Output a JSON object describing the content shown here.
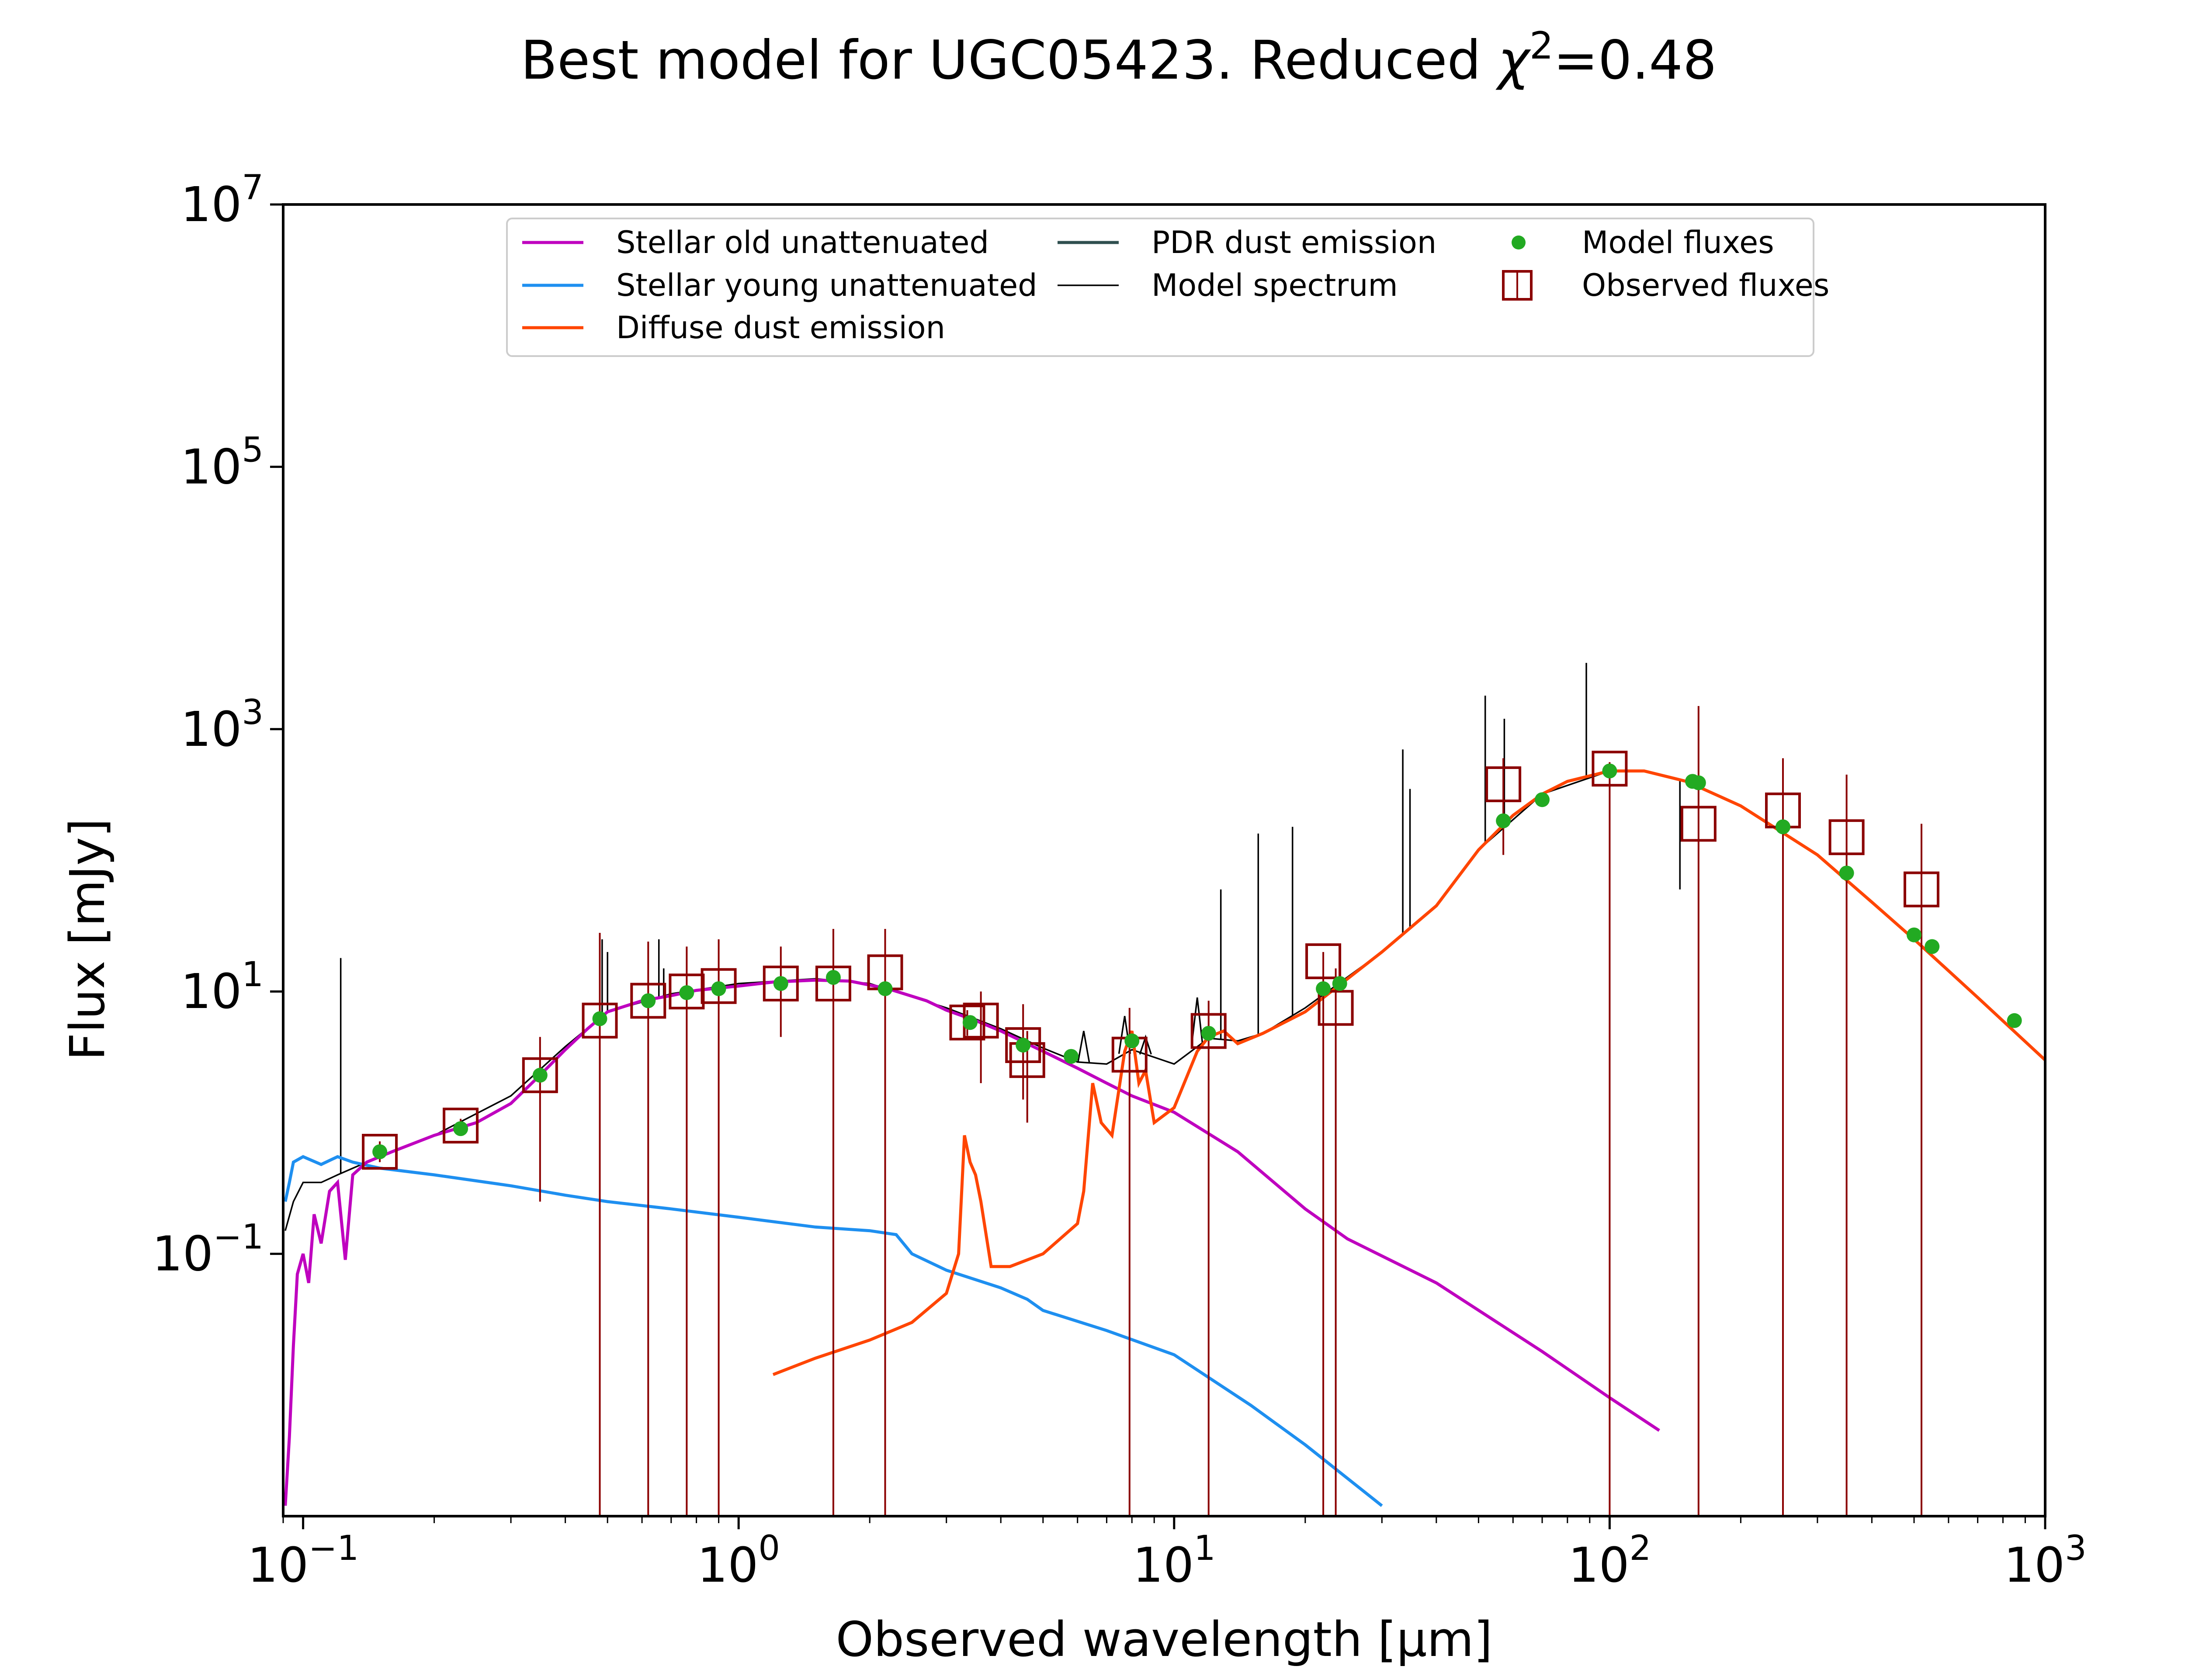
{
  "chart_data": {
    "type": "line",
    "title": "Best model for UGC05423. Reduced χ²=0.48",
    "title_prefix": "Best model for UGC05423. Reduced ",
    "title_chi": "χ",
    "title_sup": "2",
    "title_suffix": "=0.48",
    "xlabel": "Observed wavelength [μm]",
    "ylabel": "Flux [mJy]",
    "xscale": "log",
    "yscale": "log",
    "xlim": [
      0.09,
      1000
    ],
    "ylim": [
      0.001,
      10000000
    ],
    "x_ticks": [
      {
        "value": 0.1,
        "base": "10",
        "exp": "−1"
      },
      {
        "value": 1,
        "base": "10",
        "exp": "0"
      },
      {
        "value": 10,
        "base": "10",
        "exp": "1"
      },
      {
        "value": 100,
        "base": "10",
        "exp": "2"
      },
      {
        "value": 1000,
        "base": "10",
        "exp": "3"
      }
    ],
    "y_ticks": [
      {
        "value": 0.1,
        "base": "10",
        "exp": "−1"
      },
      {
        "value": 10,
        "base": "10",
        "exp": "1"
      },
      {
        "value": 1000,
        "base": "10",
        "exp": "3"
      },
      {
        "value": 100000,
        "base": "10",
        "exp": "5"
      },
      {
        "value": 10000000,
        "base": "10",
        "exp": "7"
      }
    ],
    "grid": false,
    "legend_position": "top-center",
    "series": [
      {
        "name": "Stellar old unattenuated",
        "kind": "line",
        "color": "#bf00bf",
        "points": [
          [
            0.091,
            0.0012
          ],
          [
            0.093,
            0.004
          ],
          [
            0.095,
            0.02
          ],
          [
            0.097,
            0.07
          ],
          [
            0.1,
            0.1
          ],
          [
            0.103,
            0.06
          ],
          [
            0.106,
            0.2
          ],
          [
            0.11,
            0.12
          ],
          [
            0.115,
            0.3
          ],
          [
            0.12,
            0.35
          ],
          [
            0.125,
            0.09
          ],
          [
            0.13,
            0.4
          ],
          [
            0.14,
            0.5
          ],
          [
            0.16,
            0.6
          ],
          [
            0.2,
            0.8
          ],
          [
            0.25,
            1.0
          ],
          [
            0.3,
            1.4
          ],
          [
            0.35,
            2.3
          ],
          [
            0.4,
            3.6
          ],
          [
            0.45,
            5.2
          ],
          [
            0.5,
            7.0
          ],
          [
            0.6,
            8.5
          ],
          [
            0.7,
            9.3
          ],
          [
            0.8,
            10.2
          ],
          [
            1.0,
            11.0
          ],
          [
            1.2,
            11.8
          ],
          [
            1.5,
            12.2
          ],
          [
            1.8,
            12.0
          ],
          [
            2.2,
            10.5
          ],
          [
            2.7,
            8.5
          ],
          [
            3.0,
            7.2
          ],
          [
            3.5,
            6.0
          ],
          [
            4.0,
            5.0
          ],
          [
            5.0,
            3.5
          ],
          [
            6.0,
            2.6
          ],
          [
            7.0,
            2.0
          ],
          [
            8.0,
            1.6
          ],
          [
            10.0,
            1.2
          ],
          [
            14.0,
            0.6
          ],
          [
            20.0,
            0.22
          ],
          [
            25.0,
            0.13
          ],
          [
            40.0,
            0.06
          ],
          [
            70.0,
            0.018
          ],
          [
            100.0,
            0.008
          ],
          [
            130.0,
            0.0045
          ]
        ]
      },
      {
        "name": "Stellar young unattenuated",
        "kind": "line",
        "color": "#1e8ff0",
        "points": [
          [
            0.091,
            0.25
          ],
          [
            0.093,
            0.35
          ],
          [
            0.095,
            0.5
          ],
          [
            0.1,
            0.55
          ],
          [
            0.11,
            0.48
          ],
          [
            0.12,
            0.55
          ],
          [
            0.13,
            0.5
          ],
          [
            0.15,
            0.45
          ],
          [
            0.2,
            0.4
          ],
          [
            0.3,
            0.33
          ],
          [
            0.4,
            0.28
          ],
          [
            0.5,
            0.25
          ],
          [
            0.7,
            0.22
          ],
          [
            1.0,
            0.19
          ],
          [
            1.5,
            0.16
          ],
          [
            2.0,
            0.15
          ],
          [
            2.3,
            0.14
          ],
          [
            2.5,
            0.1
          ],
          [
            3.0,
            0.075
          ],
          [
            4.0,
            0.055
          ],
          [
            4.6,
            0.045
          ],
          [
            5.0,
            0.037
          ],
          [
            7.0,
            0.026
          ],
          [
            10.0,
            0.017
          ],
          [
            15.0,
            0.007
          ],
          [
            20.0,
            0.0035
          ],
          [
            30.0,
            0.0012
          ]
        ]
      },
      {
        "name": "Diffuse dust emission",
        "kind": "line",
        "color": "#ff4500",
        "points": [
          [
            1.2,
            0.012
          ],
          [
            1.5,
            0.016
          ],
          [
            2.0,
            0.022
          ],
          [
            2.5,
            0.03
          ],
          [
            3.0,
            0.05
          ],
          [
            3.2,
            0.1
          ],
          [
            3.3,
            0.8
          ],
          [
            3.4,
            0.5
          ],
          [
            3.5,
            0.4
          ],
          [
            3.6,
            0.25
          ],
          [
            3.8,
            0.08
          ],
          [
            4.2,
            0.08
          ],
          [
            5.0,
            0.1
          ],
          [
            6.0,
            0.17
          ],
          [
            6.2,
            0.3
          ],
          [
            6.5,
            2.0
          ],
          [
            6.8,
            1.0
          ],
          [
            7.2,
            0.8
          ],
          [
            7.7,
            3.5
          ],
          [
            8.0,
            5.0
          ],
          [
            8.3,
            2.0
          ],
          [
            8.6,
            2.5
          ],
          [
            9.0,
            1.0
          ],
          [
            10.0,
            1.3
          ],
          [
            11.3,
            3.5
          ],
          [
            12.0,
            4.5
          ],
          [
            13.0,
            5.0
          ],
          [
            14.0,
            4.0
          ],
          [
            16.0,
            4.8
          ],
          [
            20.0,
            7.0
          ],
          [
            30.0,
            20.0
          ],
          [
            40.0,
            45.0
          ],
          [
            50.0,
            120.0
          ],
          [
            60.0,
            220.0
          ],
          [
            70.0,
            320.0
          ],
          [
            80.0,
            400.0
          ],
          [
            100.0,
            480.0
          ],
          [
            120.0,
            480.0
          ],
          [
            150.0,
            400.0
          ],
          [
            200.0,
            260.0
          ],
          [
            300.0,
            110.0
          ],
          [
            400.0,
            48.0
          ],
          [
            500.0,
            25.0
          ],
          [
            700.0,
            9.0
          ],
          [
            1000.0,
            3.0
          ]
        ]
      },
      {
        "name": "PDR dust emission",
        "kind": "line",
        "color": "#2f4f4f",
        "points": []
      },
      {
        "name": "Model spectrum",
        "kind": "line",
        "color": "#000000",
        "points": [
          [
            0.091,
            0.15
          ],
          [
            0.095,
            0.25
          ],
          [
            0.1,
            0.35
          ],
          [
            0.11,
            0.35
          ],
          [
            0.12,
            0.4
          ],
          [
            0.14,
            0.5
          ],
          [
            0.16,
            0.6
          ],
          [
            0.2,
            0.8
          ],
          [
            0.3,
            1.6
          ],
          [
            0.4,
            3.8
          ],
          [
            0.5,
            7.0
          ],
          [
            0.7,
            9.6
          ],
          [
            1.0,
            11.5
          ],
          [
            1.5,
            12.5
          ],
          [
            2.0,
            11.5
          ],
          [
            3.0,
            7.5
          ],
          [
            4.0,
            5.2
          ],
          [
            5.0,
            3.7
          ],
          [
            6.0,
            2.9
          ],
          [
            7.0,
            2.8
          ],
          [
            8.0,
            3.6
          ],
          [
            10.0,
            2.8
          ],
          [
            12.0,
            4.4
          ],
          [
            14.0,
            4.2
          ],
          [
            16.0,
            4.8
          ],
          [
            20.0,
            7.5
          ],
          [
            30.0,
            20.0
          ],
          [
            40.0,
            45.0
          ],
          [
            50.0,
            120.0
          ],
          [
            70.0,
            320.0
          ],
          [
            100.0,
            480.0
          ],
          [
            120.0,
            480.0
          ],
          [
            150.0,
            400.0
          ],
          [
            200.0,
            260.0
          ],
          [
            300.0,
            110.0
          ],
          [
            400.0,
            48.0
          ],
          [
            500.0,
            25.0
          ],
          [
            700.0,
            9.0
          ],
          [
            1000.0,
            3.0
          ]
        ]
      },
      {
        "name": "Model fluxes",
        "kind": "scatter",
        "color": "#22aa22",
        "points": [
          [
            0.15,
            0.6
          ],
          [
            0.23,
            0.9
          ],
          [
            0.35,
            2.3
          ],
          [
            0.48,
            6.2
          ],
          [
            0.62,
            8.5
          ],
          [
            0.76,
            9.8
          ],
          [
            0.9,
            10.5
          ],
          [
            1.25,
            11.5
          ],
          [
            1.65,
            12.8
          ],
          [
            2.17,
            10.5
          ],
          [
            3.4,
            5.8
          ],
          [
            4.5,
            3.9
          ],
          [
            5.8,
            3.2
          ],
          [
            8.0,
            4.2
          ],
          [
            12.0,
            4.8
          ],
          [
            22.0,
            10.5
          ],
          [
            24.0,
            11.5
          ],
          [
            57.0,
            200.0
          ],
          [
            70.0,
            290.0
          ],
          [
            100.0,
            480.0
          ],
          [
            155.0,
            400.0
          ],
          [
            160.0,
            390.0
          ],
          [
            250.0,
            180.0
          ],
          [
            350.0,
            80.0
          ],
          [
            500.0,
            27.0
          ],
          [
            550.0,
            22.0
          ],
          [
            850.0,
            6.0
          ]
        ]
      },
      {
        "name": "Observed fluxes",
        "kind": "errorbar",
        "color": "#8b0000",
        "points": [
          [
            0.15,
            0.6,
            0.5,
            0.72
          ],
          [
            0.23,
            0.95,
            0.85,
            1.07
          ],
          [
            0.35,
            2.3,
            0.25,
            4.5
          ],
          [
            0.48,
            6.0,
            0.001,
            28.0
          ],
          [
            0.62,
            8.5,
            0.001,
            24.0
          ],
          [
            0.76,
            10.0,
            0.001,
            22.0
          ],
          [
            0.9,
            11.0,
            0.001,
            25.0
          ],
          [
            1.25,
            11.5,
            4.5,
            22.0
          ],
          [
            1.65,
            11.5,
            0.001,
            30.0
          ],
          [
            2.17,
            14.0,
            0.001,
            30.0
          ],
          [
            3.35,
            5.8,
            4.6,
            7.2
          ],
          [
            3.6,
            6.0,
            2.0,
            10.0
          ],
          [
            4.5,
            3.9,
            1.5,
            8.0
          ],
          [
            4.6,
            3.0,
            1.0,
            5.0
          ],
          [
            7.9,
            3.3,
            0.001,
            7.5
          ],
          [
            12.0,
            5.0,
            0.001,
            8.5
          ],
          [
            22.0,
            17.0,
            0.001,
            20.0
          ],
          [
            23.5,
            7.5,
            0.001,
            15.0
          ],
          [
            57.0,
            380.0,
            110.0,
            600.0
          ],
          [
            100.0,
            500.0,
            0.001,
            560.0
          ],
          [
            160.0,
            190.0,
            0.001,
            1500.0
          ],
          [
            250.0,
            240.0,
            0.001,
            600.0
          ],
          [
            350.0,
            150.0,
            0.001,
            450.0
          ],
          [
            520.0,
            60.0,
            0.001,
            190.0
          ]
        ]
      }
    ],
    "lines": [
      {
        "x": 0.122,
        "peak": 18.0
      },
      {
        "x": 0.486,
        "peak": 25.0
      },
      {
        "x": 0.5,
        "peak": 20.0
      },
      {
        "x": 0.656,
        "peak": 25.0
      },
      {
        "x": 0.673,
        "peak": 15.0
      },
      {
        "x": 12.8,
        "peak": 60.0
      },
      {
        "x": 15.6,
        "peak": 160.0
      },
      {
        "x": 18.7,
        "peak": 180.0
      },
      {
        "x": 33.5,
        "peak": 700.0
      },
      {
        "x": 34.8,
        "peak": 350.0
      },
      {
        "x": 51.8,
        "peak": 1800.0
      },
      {
        "x": 57.3,
        "peak": 1200.0
      },
      {
        "x": 88.4,
        "peak": 3200.0
      },
      {
        "x": 145.0,
        "peak": 60.0
      }
    ],
    "pah": [
      {
        "x": 6.2,
        "peak": 5.0
      },
      {
        "x": 7.7,
        "peak": 6.5
      },
      {
        "x": 8.6,
        "peak": 4.5
      },
      {
        "x": 11.3,
        "peak": 9.0
      }
    ]
  }
}
